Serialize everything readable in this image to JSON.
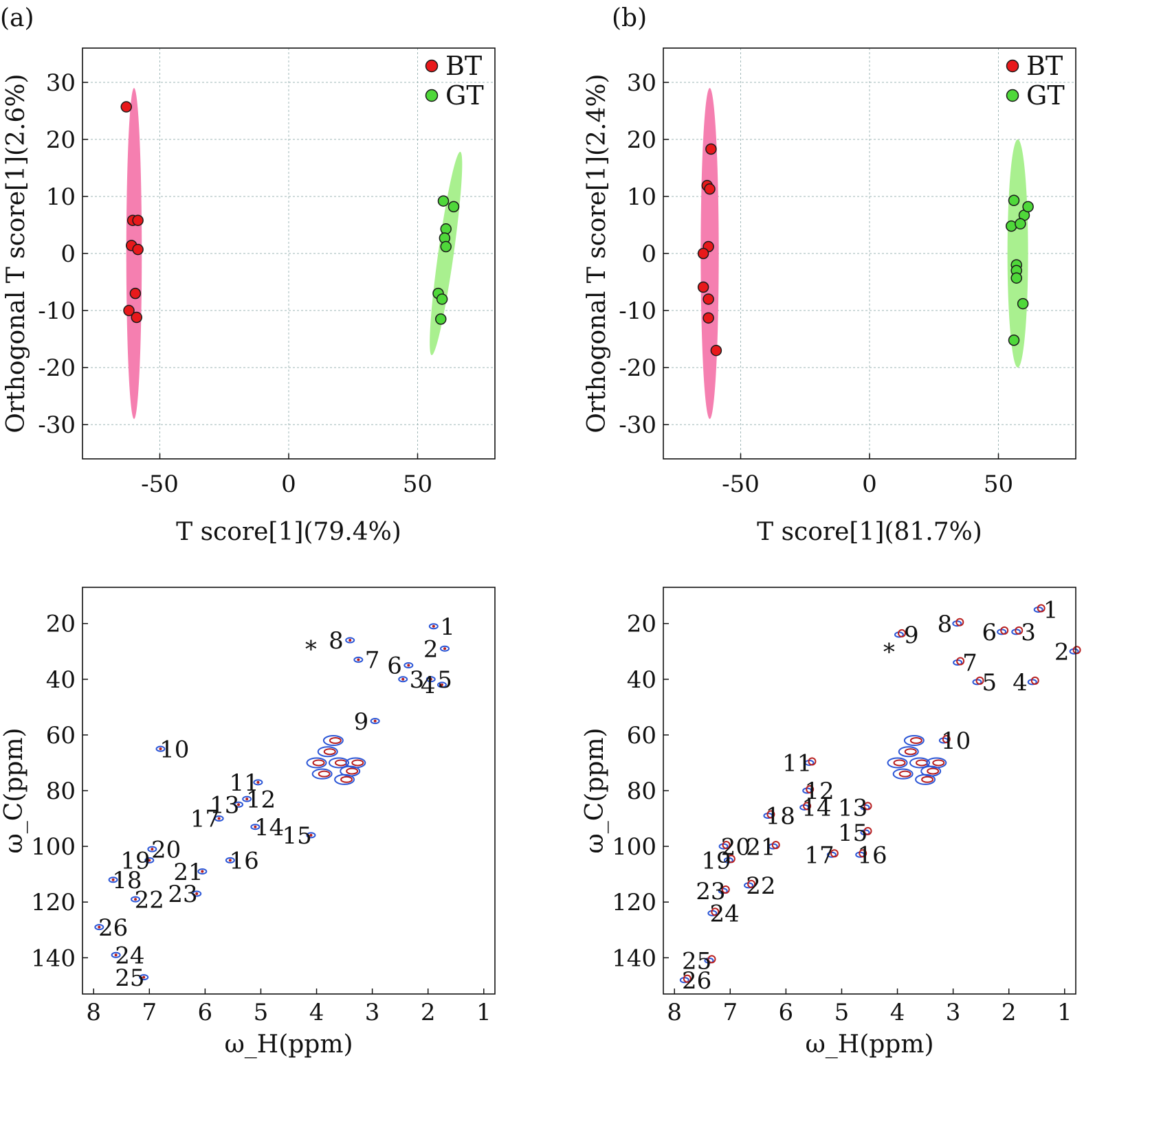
{
  "panel_labels": [
    "(a)",
    "(b)"
  ],
  "colors": {
    "bt_marker": "#e8191b",
    "gt_marker": "#4fd83a",
    "bt_ellipse": "#f57fb0",
    "gt_ellipse": "#a9f08f",
    "grid": "#9fb7b7",
    "contour_blue": "#2a55d6",
    "contour_red": "#b81e1e"
  },
  "chart_data": [
    {
      "type": "scatter",
      "panel": "(a)",
      "xlabel": "T score[1](79.4%)",
      "ylabel": "Orthogonal T score[1](2.6%)",
      "xlim": [
        -80,
        80
      ],
      "ylim": [
        -36,
        36
      ],
      "xticks": [
        -50,
        0,
        50
      ],
      "yticks": [
        -30,
        -20,
        -10,
        0,
        10,
        20,
        30
      ],
      "grid": true,
      "legend": "top-right",
      "series": [
        {
          "name": "BT",
          "points": [
            [
              -63,
              25.7
            ],
            [
              -60.5,
              5.8
            ],
            [
              -58.5,
              5.8
            ],
            [
              -61,
              1.4
            ],
            [
              -58.5,
              0.7
            ],
            [
              -59.5,
              -7
            ],
            [
              -62,
              -10
            ],
            [
              -59,
              -11.2
            ]
          ],
          "ellipse": {
            "cx": -60,
            "cy": 0,
            "rx": 3,
            "ry": 29
          }
        },
        {
          "name": "GT",
          "points": [
            [
              60,
              9.2
            ],
            [
              64,
              8.2
            ],
            [
              61,
              4.3
            ],
            [
              60.5,
              2.7
            ],
            [
              61,
              1.2
            ],
            [
              58,
              -7
            ],
            [
              59.5,
              -8
            ],
            [
              59,
              -11.5
            ]
          ],
          "ellipse": {
            "cx": 61,
            "cy": 0,
            "rx": 3,
            "ry": 18,
            "tilt": 8
          }
        }
      ]
    },
    {
      "type": "scatter",
      "panel": "(b)",
      "xlabel": "T score[1](81.7%)",
      "ylabel": "Orthogonal T score[1](2.4%)",
      "xlim": [
        -80,
        80
      ],
      "ylim": [
        -36,
        36
      ],
      "xticks": [
        -50,
        0,
        50
      ],
      "yticks": [
        -30,
        -20,
        -10,
        0,
        10,
        20,
        30
      ],
      "grid": true,
      "legend": "top-right",
      "series": [
        {
          "name": "BT",
          "points": [
            [
              -61.5,
              18.3
            ],
            [
              -63,
              11.9
            ],
            [
              -62,
              11.3
            ],
            [
              -62.5,
              1.2
            ],
            [
              -64.5,
              0
            ],
            [
              -64.5,
              -5.9
            ],
            [
              -62.5,
              -8
            ],
            [
              -62.5,
              -11.3
            ],
            [
              -59.5,
              -17
            ]
          ],
          "ellipse": {
            "cx": -62,
            "cy": 0,
            "rx": 3.5,
            "ry": 29
          }
        },
        {
          "name": "GT",
          "points": [
            [
              56,
              9.3
            ],
            [
              60,
              6.7
            ],
            [
              61.5,
              8.2
            ],
            [
              55,
              4.8
            ],
            [
              58.5,
              5.2
            ],
            [
              57,
              -2
            ],
            [
              57,
              -3
            ],
            [
              57,
              -4.3
            ],
            [
              59.5,
              -8.8
            ],
            [
              56,
              -15.2
            ]
          ],
          "ellipse": {
            "cx": 57.5,
            "cy": 0,
            "rx": 4,
            "ry": 20
          }
        }
      ]
    },
    {
      "type": "scatter",
      "subtype": "nmr-2d-contour",
      "panel": "(a) lower",
      "xlabel": "ω_H(ppm)",
      "ylabel": "ω_C(ppm)",
      "xlim": [
        8.2,
        0.8
      ],
      "ylim": [
        153,
        7
      ],
      "xticks": [
        8,
        7,
        6,
        5,
        4,
        3,
        2,
        1
      ],
      "yticks": [
        20,
        40,
        60,
        80,
        100,
        120,
        140
      ],
      "peak_labels": [
        {
          "t": "1",
          "x": 1.65,
          "y": 24
        },
        {
          "t": "2",
          "x": 1.95,
          "y": 32
        },
        {
          "t": "3",
          "x": 2.2,
          "y": 43
        },
        {
          "t": "4",
          "x": 2.0,
          "y": 45
        },
        {
          "t": "5",
          "x": 1.7,
          "y": 43
        },
        {
          "t": "6",
          "x": 2.6,
          "y": 38
        },
        {
          "t": "7",
          "x": 3.0,
          "y": 36
        },
        {
          "t": "8",
          "x": 3.65,
          "y": 29
        },
        {
          "t": "*",
          "x": 4.1,
          "y": 32
        },
        {
          "t": "9",
          "x": 3.2,
          "y": 58
        },
        {
          "t": "10",
          "x": 6.55,
          "y": 68
        },
        {
          "t": "11",
          "x": 5.3,
          "y": 80
        },
        {
          "t": "12",
          "x": 5.0,
          "y": 86
        },
        {
          "t": "13",
          "x": 5.65,
          "y": 88
        },
        {
          "t": "14",
          "x": 4.85,
          "y": 96
        },
        {
          "t": "15",
          "x": 4.35,
          "y": 99
        },
        {
          "t": "16",
          "x": 5.3,
          "y": 108
        },
        {
          "t": "17",
          "x": 6.0,
          "y": 93
        },
        {
          "t": "18",
          "x": 7.4,
          "y": 115
        },
        {
          "t": "19",
          "x": 7.25,
          "y": 108
        },
        {
          "t": "20",
          "x": 6.7,
          "y": 104
        },
        {
          "t": "21",
          "x": 6.3,
          "y": 112
        },
        {
          "t": "22",
          "x": 7.0,
          "y": 122
        },
        {
          "t": "23",
          "x": 6.4,
          "y": 120
        },
        {
          "t": "24",
          "x": 7.35,
          "y": 142
        },
        {
          "t": "25",
          "x": 7.35,
          "y": 150
        },
        {
          "t": "26",
          "x": 7.65,
          "y": 132
        }
      ]
    },
    {
      "type": "scatter",
      "subtype": "nmr-2d-contour",
      "panel": "(b) lower",
      "xlabel": "ω_H(ppm)",
      "ylabel": "ω_C(ppm)",
      "xlim": [
        8.2,
        0.8
      ],
      "ylim": [
        153,
        7
      ],
      "xticks": [
        8,
        7,
        6,
        5,
        4,
        3,
        2,
        1
      ],
      "yticks": [
        20,
        40,
        60,
        80,
        100,
        120,
        140
      ],
      "peak_labels": [
        {
          "t": "1",
          "x": 1.25,
          "y": 18
        },
        {
          "t": "2",
          "x": 1.05,
          "y": 33
        },
        {
          "t": "3",
          "x": 1.65,
          "y": 26
        },
        {
          "t": "4",
          "x": 1.8,
          "y": 44
        },
        {
          "t": "5",
          "x": 2.35,
          "y": 44
        },
        {
          "t": "6",
          "x": 2.35,
          "y": 26
        },
        {
          "t": "7",
          "x": 2.7,
          "y": 37
        },
        {
          "t": "8",
          "x": 3.15,
          "y": 23
        },
        {
          "t": "9",
          "x": 3.75,
          "y": 27
        },
        {
          "t": "*",
          "x": 4.15,
          "y": 33
        },
        {
          "t": "10",
          "x": 2.95,
          "y": 65
        },
        {
          "t": "11",
          "x": 5.8,
          "y": 73
        },
        {
          "t": "12",
          "x": 5.4,
          "y": 83
        },
        {
          "t": "13",
          "x": 4.8,
          "y": 89
        },
        {
          "t": "14",
          "x": 5.45,
          "y": 89
        },
        {
          "t": "15",
          "x": 4.8,
          "y": 98
        },
        {
          "t": "16",
          "x": 4.45,
          "y": 106
        },
        {
          "t": "17",
          "x": 5.4,
          "y": 106
        },
        {
          "t": "18",
          "x": 6.1,
          "y": 92
        },
        {
          "t": "19",
          "x": 7.25,
          "y": 108
        },
        {
          "t": "20",
          "x": 6.9,
          "y": 103
        },
        {
          "t": "21",
          "x": 6.45,
          "y": 103
        },
        {
          "t": "22",
          "x": 6.45,
          "y": 117
        },
        {
          "t": "23",
          "x": 7.35,
          "y": 119
        },
        {
          "t": "24",
          "x": 7.1,
          "y": 127
        },
        {
          "t": "25",
          "x": 7.6,
          "y": 144
        },
        {
          "t": "26",
          "x": 7.6,
          "y": 151
        }
      ]
    }
  ]
}
